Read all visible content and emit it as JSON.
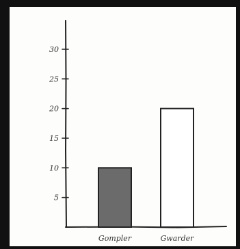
{
  "chart_data": {
    "type": "bar",
    "categories": [
      "Gompler",
      "Gwarder"
    ],
    "values": [
      10,
      20
    ],
    "ylim": [
      0,
      30
    ],
    "yticks": [
      5,
      10,
      15,
      20,
      25,
      30
    ],
    "ytick_labels": [
      "5",
      "10",
      "15",
      "20",
      "25",
      "30"
    ],
    "grid": false,
    "colors": {
      "bar_fills": [
        "#6b6b6b",
        "#ffffff"
      ],
      "ink": "#222222"
    }
  }
}
